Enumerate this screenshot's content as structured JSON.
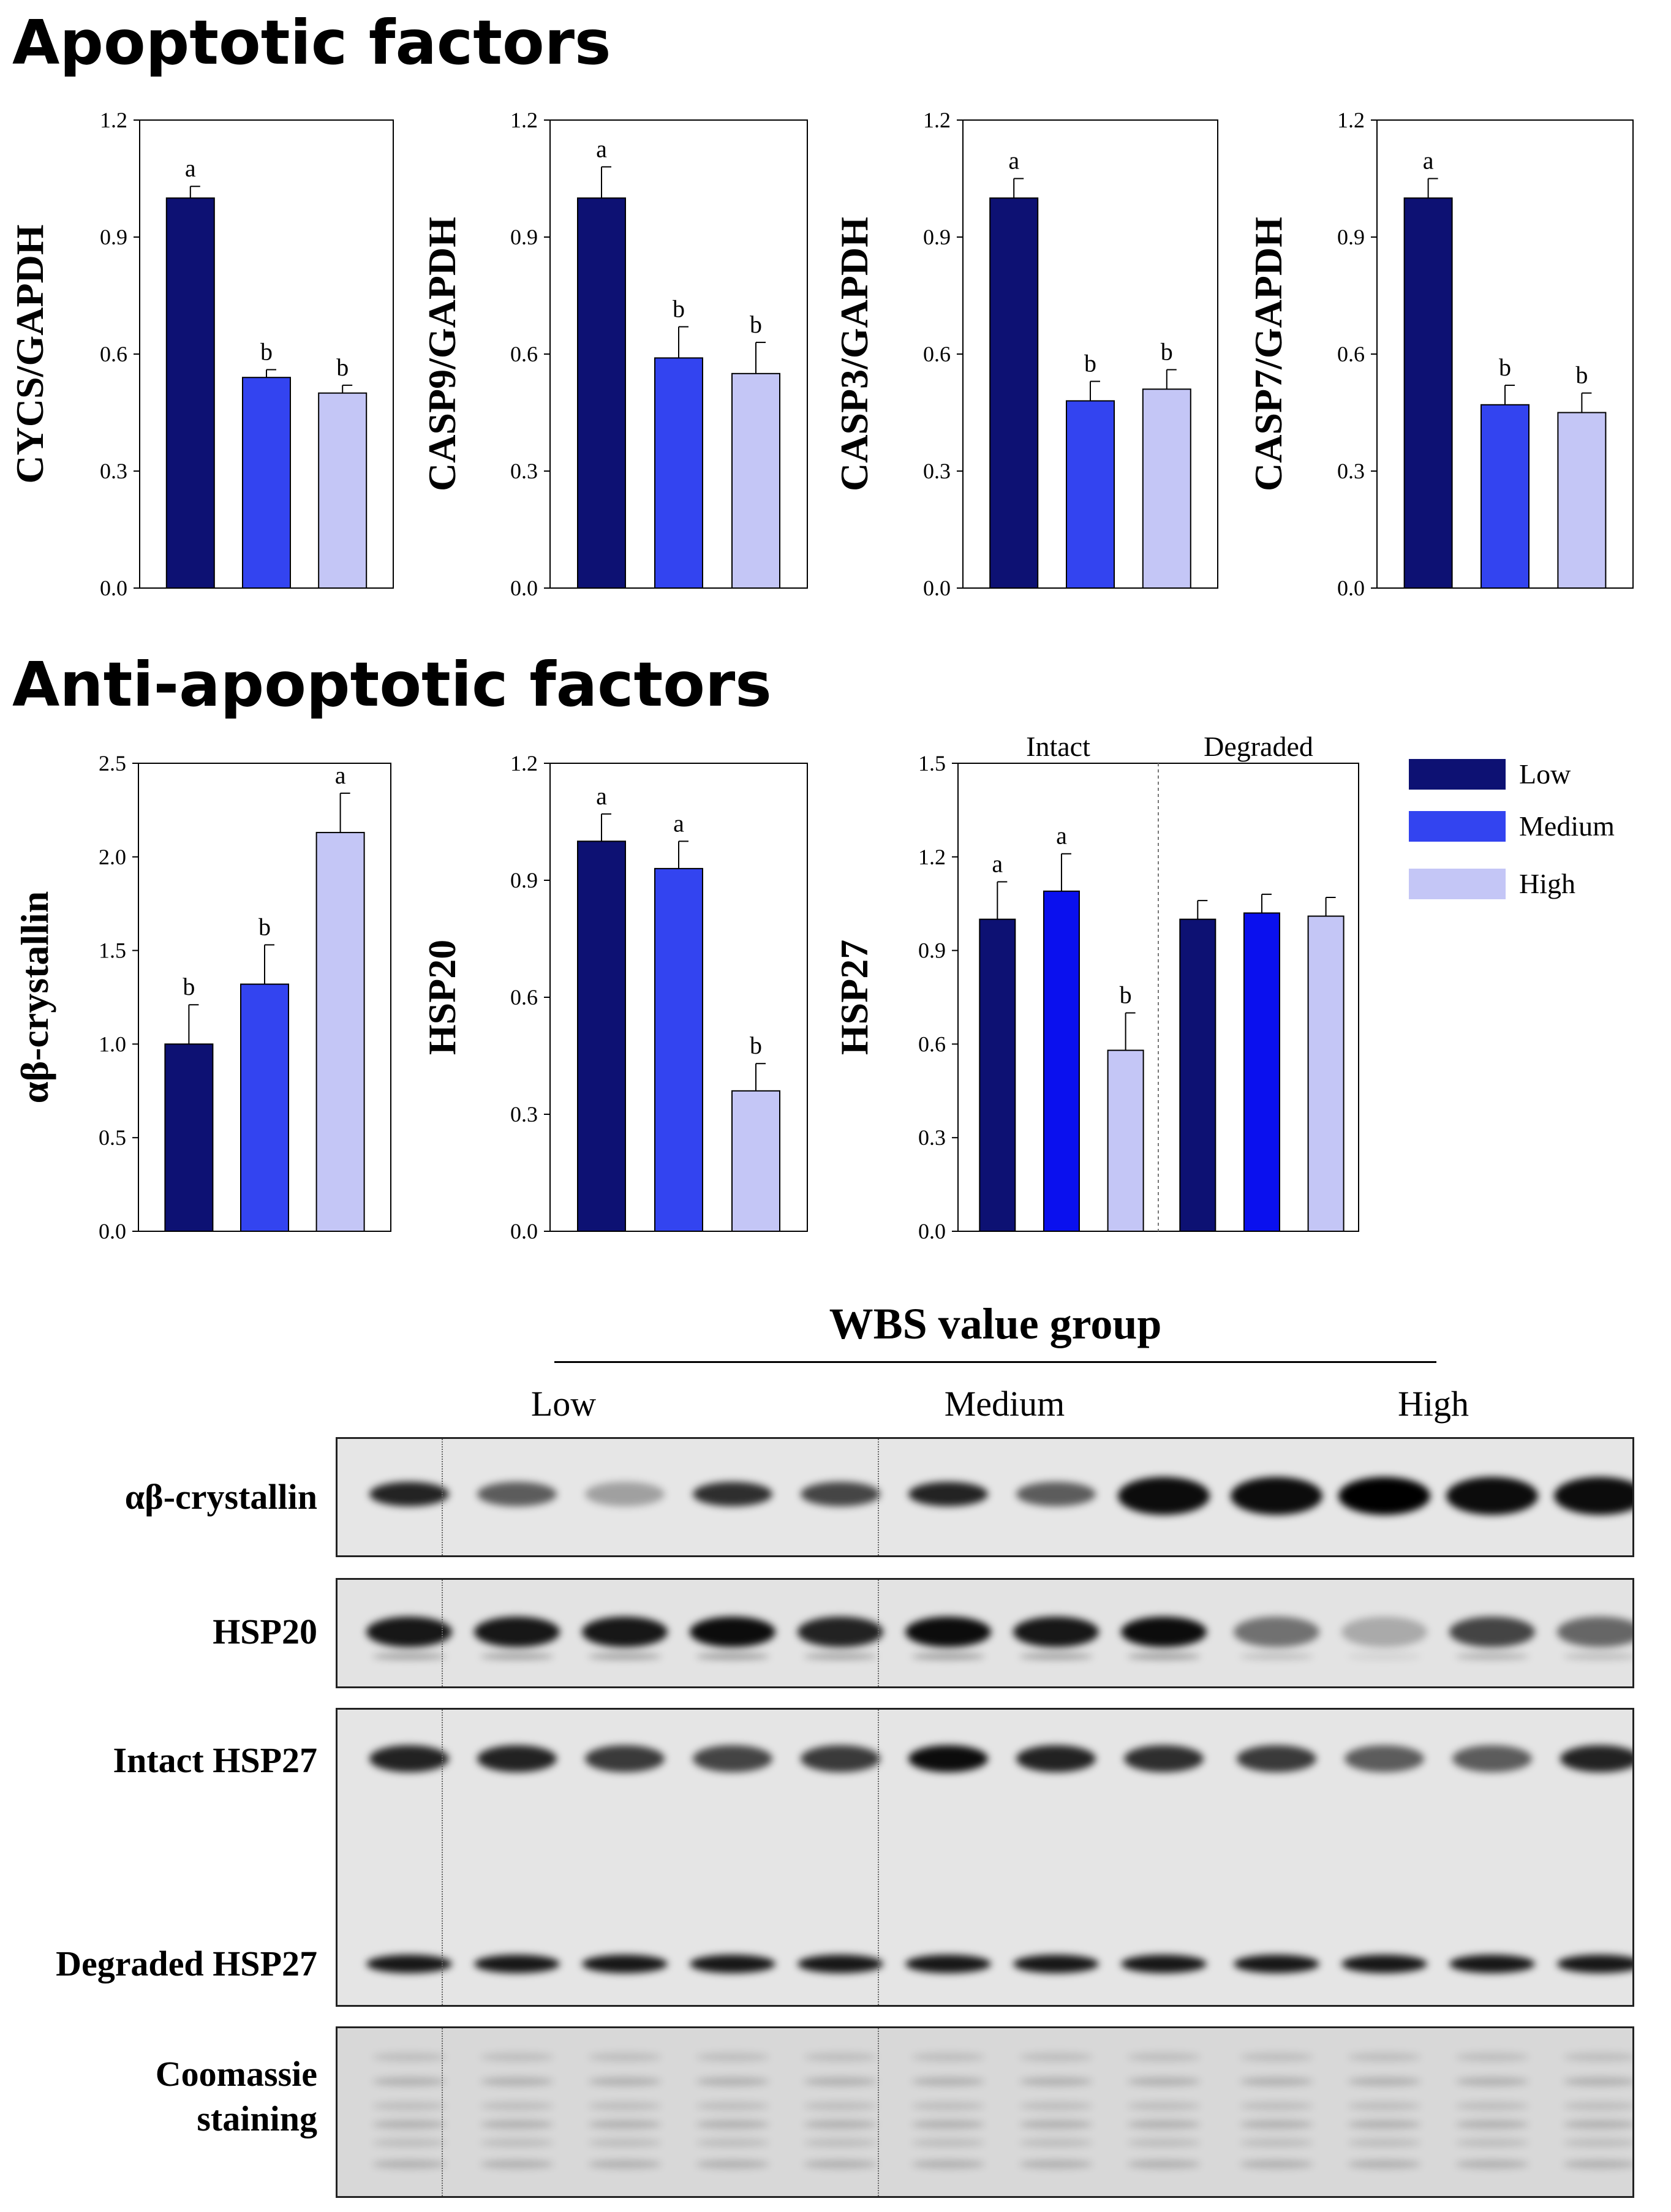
{
  "sections": {
    "apoptotic_title": "Apoptotic factors",
    "anti_apoptotic_title": "Anti-apoptotic factors"
  },
  "legend": {
    "items": [
      {
        "label": "Low",
        "color": "#0d1173"
      },
      {
        "label": "Medium",
        "color": "#3344f0"
      },
      {
        "label": "High",
        "color": "#c4c6f6"
      }
    ]
  },
  "chart_data": [
    {
      "type": "bar",
      "ylabel": "CYCS/GAPDH",
      "categories": [
        "Low",
        "Medium",
        "High"
      ],
      "values": [
        1.0,
        0.54,
        0.5
      ],
      "errors": [
        0.03,
        0.02,
        0.02
      ],
      "letters": [
        "a",
        "b",
        "b"
      ],
      "ylim": [
        0,
        1.2
      ],
      "ticks": [
        "0.0",
        "0.3",
        "0.6",
        "0.9",
        "1.2"
      ]
    },
    {
      "type": "bar",
      "ylabel": "CASP9/GAPDH",
      "categories": [
        "Low",
        "Medium",
        "High"
      ],
      "values": [
        1.0,
        0.59,
        0.55
      ],
      "errors": [
        0.08,
        0.08,
        0.08
      ],
      "letters": [
        "a",
        "b",
        "b"
      ],
      "ylim": [
        0,
        1.2
      ],
      "ticks": [
        "0.0",
        "0.3",
        "0.6",
        "0.9",
        "1.2"
      ]
    },
    {
      "type": "bar",
      "ylabel": "CASP3/GAPDH",
      "categories": [
        "Low",
        "Medium",
        "High"
      ],
      "values": [
        1.0,
        0.48,
        0.51
      ],
      "errors": [
        0.05,
        0.05,
        0.05
      ],
      "letters": [
        "a",
        "b",
        "b"
      ],
      "ylim": [
        0,
        1.2
      ],
      "ticks": [
        "0.0",
        "0.3",
        "0.6",
        "0.9",
        "1.2"
      ]
    },
    {
      "type": "bar",
      "ylabel": "CASP7/GAPDH",
      "categories": [
        "Low",
        "Medium",
        "High"
      ],
      "values": [
        1.0,
        0.47,
        0.45
      ],
      "errors": [
        0.05,
        0.05,
        0.05
      ],
      "letters": [
        "a",
        "b",
        "b"
      ],
      "ylim": [
        0,
        1.2
      ],
      "ticks": [
        "0.0",
        "0.3",
        "0.6",
        "0.9",
        "1.2"
      ]
    },
    {
      "type": "bar",
      "ylabel": "αβ-crystallin",
      "categories": [
        "Low",
        "Medium",
        "High"
      ],
      "values": [
        1.0,
        1.32,
        2.13
      ],
      "errors": [
        0.21,
        0.21,
        0.21
      ],
      "letters": [
        "b",
        "b",
        "a"
      ],
      "ylim": [
        0,
        2.5
      ],
      "ticks": [
        "0.0",
        "0.5",
        "1.0",
        "1.5",
        "2.0",
        "2.5"
      ]
    },
    {
      "type": "bar",
      "ylabel": "HSP20",
      "categories": [
        "Low",
        "Medium",
        "High"
      ],
      "values": [
        1.0,
        0.93,
        0.36
      ],
      "errors": [
        0.07,
        0.07,
        0.07
      ],
      "letters": [
        "a",
        "a",
        "b"
      ],
      "ylim": [
        0,
        1.2
      ],
      "ticks": [
        "0.0",
        "0.3",
        "0.6",
        "0.9",
        "1.2"
      ]
    },
    {
      "type": "bar",
      "ylabel": "HSP27",
      "groups": [
        "Intact",
        "Degraded"
      ],
      "categories": [
        "Low",
        "Medium",
        "High"
      ],
      "series": [
        {
          "group": "Intact",
          "values": [
            1.0,
            1.09,
            0.58
          ],
          "errors": [
            0.12,
            0.12,
            0.12
          ],
          "letters": [
            "a",
            "a",
            "b"
          ]
        },
        {
          "group": "Degraded",
          "values": [
            1.0,
            1.02,
            1.01
          ],
          "errors": [
            0.06,
            0.06,
            0.06
          ],
          "letters": [
            "",
            "",
            ""
          ]
        }
      ],
      "ylim": [
        0,
        1.5
      ],
      "ticks": [
        "0.0",
        "0.3",
        "0.6",
        "0.9",
        "1.2",
        "1.5"
      ]
    }
  ],
  "blot": {
    "title": "WBS value group",
    "groups": [
      "Low",
      "Medium",
      "High"
    ],
    "rows": [
      "αβ-crystallin",
      "HSP20",
      "Intact HSP27",
      "Degraded HSP27",
      "Coomassie staining"
    ],
    "coomassie_line1": "Coomassie",
    "coomassie_line2": "staining"
  }
}
